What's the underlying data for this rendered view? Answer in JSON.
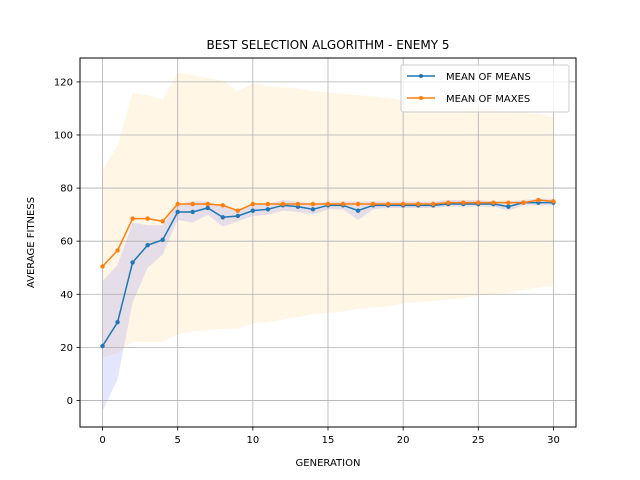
{
  "chart_data": {
    "type": "line",
    "title": "BEST SELECTION ALGORITHM - ENEMY 5",
    "xlabel": "GENERATION",
    "ylabel": "AVERAGE FITNESS",
    "xlim": [
      -1.5,
      31.5
    ],
    "ylim": [
      -10,
      129
    ],
    "xticks": [
      0,
      5,
      10,
      15,
      20,
      25,
      30
    ],
    "yticks": [
      0,
      20,
      40,
      60,
      80,
      100,
      120
    ],
    "grid": true,
    "legend_position": "top-right",
    "x": [
      0,
      1,
      2,
      3,
      4,
      5,
      6,
      7,
      8,
      9,
      10,
      11,
      12,
      13,
      14,
      15,
      16,
      17,
      18,
      19,
      20,
      21,
      22,
      23,
      24,
      25,
      26,
      27,
      28,
      29,
      30
    ],
    "series": [
      {
        "name": "MEAN OF MEANS",
        "color": "#1f77b4",
        "values": [
          20.5,
          29.5,
          52,
          58.5,
          60.5,
          71,
          71,
          72.5,
          69,
          69.5,
          71.5,
          72,
          73.5,
          73,
          72,
          73.5,
          73.5,
          71.5,
          73.5,
          73.5,
          73.5,
          73.5,
          73.5,
          74,
          74,
          74,
          74,
          73,
          74.5,
          74.5,
          74.5
        ],
        "band_lower": [
          -4,
          8,
          37,
          50,
          55,
          68,
          67,
          70,
          65.5,
          67.5,
          69.5,
          70,
          71.5,
          71,
          70,
          72,
          72,
          68,
          72,
          72.5,
          72.5,
          72.5,
          72.5,
          73,
          73,
          73,
          73,
          71.5,
          73.5,
          73.5,
          73.5
        ],
        "band_upper": [
          45,
          51,
          67,
          66,
          66,
          74,
          75,
          75,
          73,
          72,
          73.5,
          74,
          75.5,
          75,
          74,
          75,
          75,
          75,
          75,
          75,
          75,
          75,
          75,
          75.5,
          75.5,
          75.5,
          75,
          75,
          75.5,
          76,
          76
        ],
        "band_color": "#0000ff"
      },
      {
        "name": "MEAN OF MAXES",
        "color": "#ff7f0e",
        "values": [
          50.5,
          56.5,
          68.5,
          68.5,
          67.5,
          74,
          74,
          74,
          73.5,
          71.5,
          74,
          74,
          74,
          74,
          74,
          74,
          74,
          74,
          74,
          74,
          74,
          74,
          74,
          74.5,
          74.5,
          74.5,
          74.5,
          74.5,
          74.5,
          75.5,
          75
        ],
        "band_lower": [
          16,
          18,
          22,
          22,
          22,
          25,
          26,
          26.5,
          27,
          27,
          29,
          29.5,
          30.5,
          31.5,
          32.5,
          33,
          33.5,
          34.5,
          35,
          35.5,
          36.5,
          37,
          37.5,
          38,
          38.5,
          39.5,
          40,
          40.5,
          41.5,
          42.5,
          43
        ],
        "band_upper": [
          87,
          96,
          116,
          115,
          113.5,
          123.5,
          122.5,
          121.5,
          120.5,
          116.5,
          119.5,
          118.5,
          118,
          117.5,
          116.5,
          116,
          115.5,
          115,
          114.5,
          114,
          113,
          112.5,
          112,
          111.5,
          111,
          110.5,
          110,
          109,
          108.5,
          108,
          107
        ],
        "band_color": "#ffa500"
      }
    ]
  }
}
